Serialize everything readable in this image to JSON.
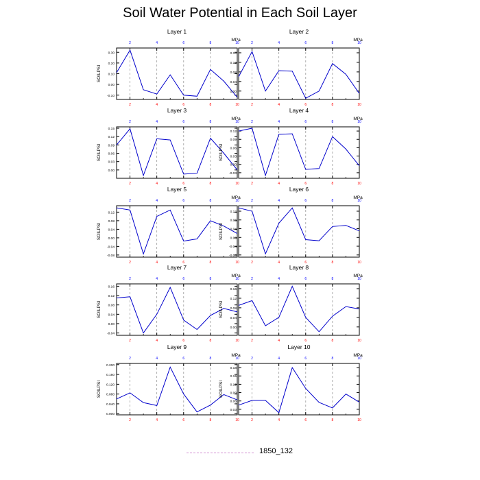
{
  "title": "Soil Water Potential in Each Soil Layer",
  "legend": {
    "label": "1850_132",
    "color": "#d08ad0"
  },
  "colors": {
    "series": "#0000cc",
    "bottom_ticks": "#ff0000",
    "top_ticks": "#0000ff",
    "reference": "#999999"
  },
  "chart_data": [
    {
      "type": "line",
      "title": "Layer 1",
      "ylabel": "SOILPSI",
      "top_axis_label": "MPa",
      "x": [
        1,
        2,
        3,
        4,
        5,
        6,
        7,
        8,
        9,
        10
      ],
      "xlim": [
        1,
        10
      ],
      "bottom_ticks": [
        2,
        4,
        6,
        8,
        10
      ],
      "top_ticks": [
        2,
        4,
        6,
        8,
        10
      ],
      "reference_lines": [
        2,
        4,
        6,
        8
      ],
      "ylim": [
        -0.14,
        0.34
      ],
      "yticks": [
        "-0.10",
        "0.00",
        "0.10",
        "0.20",
        "0.30"
      ],
      "ytick_values": [
        -0.1,
        0,
        0.1,
        0.2,
        0.3
      ],
      "values": [
        0.11,
        0.32,
        -0.05,
        -0.09,
        0.09,
        -0.1,
        -0.11,
        0.14,
        0.03,
        -0.12
      ]
    },
    {
      "type": "line",
      "title": "Layer 2",
      "ylabel": "",
      "top_axis_label": "MPa",
      "x": [
        1,
        2,
        3,
        4,
        5,
        6,
        7,
        8,
        9,
        10
      ],
      "xlim": [
        1,
        10
      ],
      "bottom_ticks": [
        2,
        4,
        6,
        8,
        10
      ],
      "top_ticks": [
        2,
        4,
        6,
        8,
        10
      ],
      "reference_lines": [
        2,
        4,
        6,
        8
      ],
      "ylim": [
        -0.035,
        0.18
      ],
      "yticks": [
        "0.00",
        "0.04",
        "0.08",
        "0.12",
        "0.16"
      ],
      "ytick_values": [
        0,
        0.04,
        0.08,
        0.12,
        0.16
      ],
      "values": [
        0.06,
        0.165,
        0.0,
        0.085,
        0.083,
        -0.03,
        0.0,
        0.115,
        0.07,
        -0.01
      ]
    },
    {
      "type": "line",
      "title": "Layer 3",
      "ylabel": "SOILPSI",
      "top_axis_label": "MPa",
      "x": [
        1,
        2,
        3,
        4,
        5,
        6,
        7,
        8,
        9,
        10
      ],
      "xlim": [
        1,
        10
      ],
      "bottom_ticks": [
        2,
        4,
        6,
        8,
        10
      ],
      "top_ticks": [
        2,
        4,
        6,
        8,
        10
      ],
      "reference_lines": [
        2,
        4,
        6,
        8
      ],
      "ylim": [
        -0.03,
        0.155
      ],
      "yticks": [
        "0.00",
        "0.03",
        "0.06",
        "0.09",
        "0.12",
        "0.15"
      ],
      "ytick_values": [
        0,
        0.03,
        0.06,
        0.09,
        0.12,
        0.15
      ],
      "values": [
        0.09,
        0.148,
        -0.02,
        0.112,
        0.108,
        -0.015,
        -0.012,
        0.114,
        0.06,
        0.0
      ]
    },
    {
      "type": "line",
      "title": "Layer 4",
      "ylabel": "SOILPSI",
      "top_axis_label": "MPa",
      "x": [
        1,
        2,
        3,
        4,
        5,
        6,
        7,
        8,
        9,
        10
      ],
      "xlim": [
        1,
        10
      ],
      "bottom_ticks": [
        2,
        4,
        6,
        8,
        10
      ],
      "top_ticks": [
        2,
        4,
        6,
        8,
        10
      ],
      "reference_lines": [
        2,
        4,
        6,
        8
      ],
      "ylim": [
        -0.05,
        0.135
      ],
      "yticks": [
        "-0.03",
        "0.00",
        "0.03",
        "0.06",
        "0.09",
        "0.12"
      ],
      "ytick_values": [
        -0.03,
        0,
        0.03,
        0.06,
        0.09,
        0.12
      ],
      "values": [
        0.12,
        0.13,
        -0.04,
        0.108,
        0.11,
        -0.018,
        -0.015,
        0.1,
        0.055,
        -0.005
      ]
    },
    {
      "type": "line",
      "title": "Layer 5",
      "ylabel": "SOILPSI",
      "top_axis_label": "MPa",
      "x": [
        1,
        2,
        3,
        4,
        5,
        6,
        7,
        8,
        9,
        10
      ],
      "xlim": [
        1,
        10
      ],
      "bottom_ticks": [
        2,
        4,
        6,
        8,
        10
      ],
      "top_ticks": [
        2,
        4,
        6,
        8,
        10
      ],
      "reference_lines": [
        2,
        4,
        6,
        8
      ],
      "ylim": [
        -0.09,
        0.15
      ],
      "yticks": [
        "-0.08",
        "-0.04",
        "0.00",
        "0.04",
        "0.08",
        "0.12"
      ],
      "ytick_values": [
        -0.08,
        -0.04,
        0,
        0.04,
        0.08,
        0.12
      ],
      "values": [
        0.14,
        0.13,
        -0.075,
        0.1,
        0.13,
        -0.015,
        -0.005,
        0.08,
        0.055,
        0.02
      ]
    },
    {
      "type": "line",
      "title": "Layer 6",
      "ylabel": "SOILPSI",
      "top_axis_label": "MPa",
      "x": [
        1,
        2,
        3,
        4,
        5,
        6,
        7,
        8,
        9,
        10
      ],
      "xlim": [
        1,
        10
      ],
      "bottom_ticks": [
        2,
        4,
        6,
        8,
        10
      ],
      "top_ticks": [
        2,
        4,
        6,
        8,
        10
      ],
      "reference_lines": [
        2,
        4,
        6,
        8
      ],
      "ylim": [
        -0.09,
        0.145
      ],
      "yticks": [
        "-0.08",
        "-0.04",
        "0.00",
        "0.04",
        "0.08",
        "0.12"
      ],
      "ytick_values": [
        -0.08,
        -0.04,
        0,
        0.04,
        0.08,
        0.12
      ],
      "values": [
        0.135,
        0.12,
        -0.075,
        0.065,
        0.135,
        -0.01,
        -0.015,
        0.05,
        0.055,
        0.03
      ]
    },
    {
      "type": "line",
      "title": "Layer 7",
      "ylabel": "SOILPSI",
      "top_axis_label": "MPa",
      "x": [
        1,
        2,
        3,
        4,
        5,
        6,
        7,
        8,
        9,
        10
      ],
      "xlim": [
        1,
        10
      ],
      "bottom_ticks": [
        2,
        4,
        6,
        8,
        10
      ],
      "top_ticks": [
        2,
        4,
        6,
        8,
        10
      ],
      "reference_lines": [
        2,
        4,
        6,
        8
      ],
      "ylim": [
        -0.05,
        0.17
      ],
      "yticks": [
        "-0.04",
        "0.00",
        "0.04",
        "0.08",
        "0.12",
        "0.16"
      ],
      "ytick_values": [
        -0.04,
        0,
        0.04,
        0.08,
        0.12,
        0.16
      ],
      "values": [
        0.11,
        0.115,
        -0.04,
        0.04,
        0.155,
        0.015,
        -0.025,
        0.035,
        0.065,
        0.05
      ]
    },
    {
      "type": "line",
      "title": "Layer 8",
      "ylabel": "SOILPSI",
      "top_axis_label": "MPa",
      "x": [
        1,
        2,
        3,
        4,
        5,
        6,
        7,
        8,
        9,
        10
      ],
      "xlim": [
        1,
        10
      ],
      "bottom_ticks": [
        2,
        4,
        6,
        8,
        10
      ],
      "top_ticks": [
        2,
        4,
        6,
        8,
        10
      ],
      "reference_lines": [
        2,
        4,
        6,
        8
      ],
      "ylim": [
        -0.035,
        0.18
      ],
      "yticks": [
        "0.00",
        "0.04",
        "0.08",
        "0.12",
        "0.16"
      ],
      "ytick_values": [
        0,
        0.04,
        0.08,
        0.12,
        0.16
      ],
      "values": [
        0.09,
        0.11,
        0.005,
        0.04,
        0.17,
        0.04,
        -0.02,
        0.045,
        0.085,
        0.075
      ]
    },
    {
      "type": "line",
      "title": "Layer 9",
      "ylabel": "SOILPSI",
      "top_axis_label": "MPa",
      "x": [
        1,
        2,
        3,
        4,
        5,
        6,
        7,
        8,
        9,
        10
      ],
      "xlim": [
        1,
        10
      ],
      "bottom_ticks": [
        2,
        4,
        6,
        8,
        10
      ],
      "top_ticks": [
        2,
        4,
        6,
        8,
        10
      ],
      "reference_lines": [
        2,
        4,
        6,
        8
      ],
      "ylim": [
        -0.005,
        0.205
      ],
      "yticks": [
        "0.000",
        "0.040",
        "0.080",
        "0.120",
        "0.160",
        "0.200"
      ],
      "ytick_values": [
        0,
        0.04,
        0.08,
        0.12,
        0.16,
        0.2
      ],
      "values": [
        0.06,
        0.085,
        0.045,
        0.033,
        0.19,
        0.08,
        0.007,
        0.035,
        0.078,
        0.056
      ]
    },
    {
      "type": "line",
      "title": "Layer 10",
      "ylabel": "SOILPSI",
      "top_axis_label": "MPa",
      "x": [
        1,
        2,
        3,
        4,
        5,
        6,
        7,
        8,
        9,
        10
      ],
      "xlim": [
        1,
        10
      ],
      "bottom_ticks": [
        2,
        4,
        6,
        8,
        10
      ],
      "top_ticks": [
        2,
        4,
        6,
        8,
        10
      ],
      "reference_lines": [
        2,
        4,
        6,
        8
      ],
      "ylim": [
        0.01,
        0.195
      ],
      "yticks": [
        "0.03",
        "0.06",
        "0.09",
        "0.12",
        "0.15",
        "0.18"
      ],
      "ytick_values": [
        0.03,
        0.06,
        0.09,
        0.12,
        0.15,
        0.18
      ],
      "values": [
        0.045,
        0.062,
        0.062,
        0.018,
        0.18,
        0.105,
        0.055,
        0.035,
        0.085,
        0.056
      ]
    }
  ]
}
